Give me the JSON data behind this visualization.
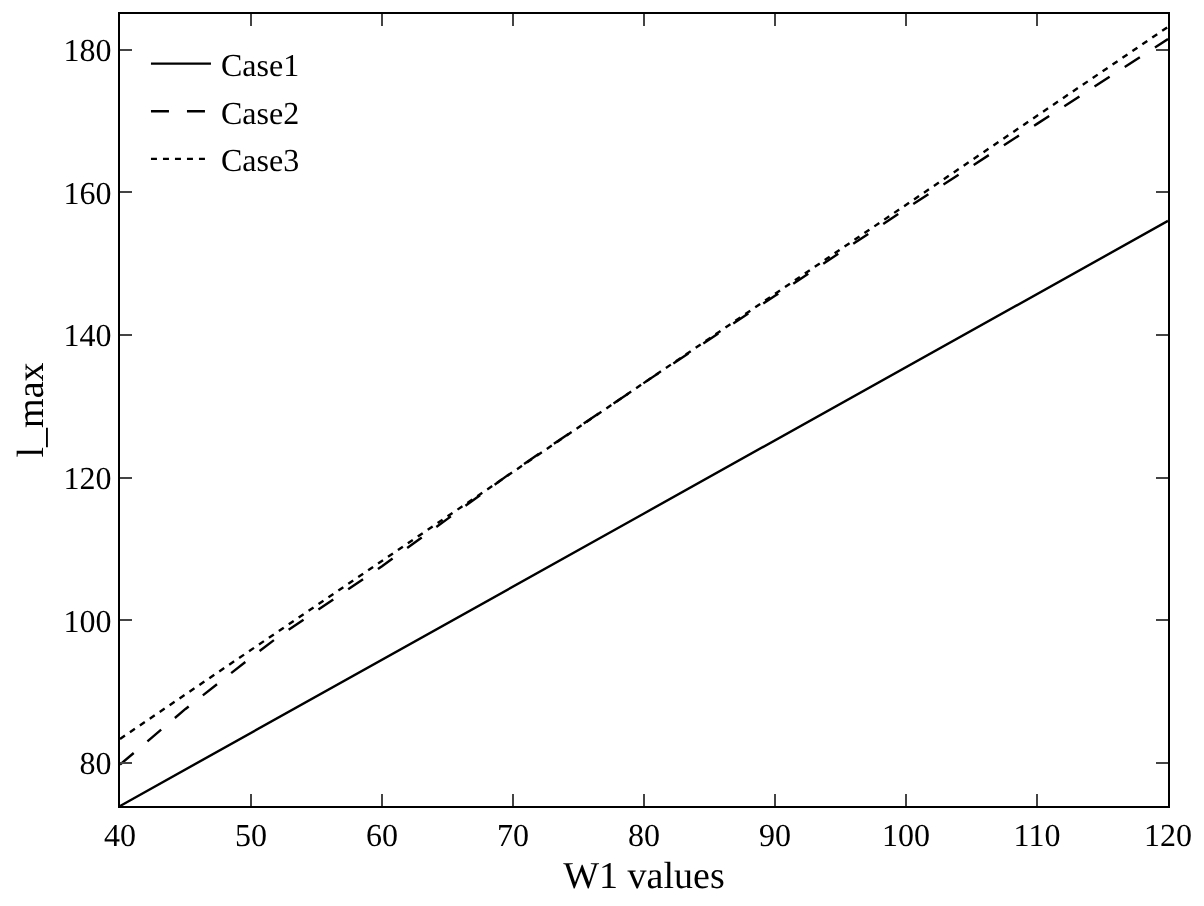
{
  "chart_data": {
    "type": "line",
    "xlabel": "W1 values",
    "ylabel": "l_max",
    "xlim": [
      40,
      120
    ],
    "xticks": [
      40,
      50,
      60,
      70,
      80,
      90,
      100,
      110,
      120
    ],
    "ylim": [
      74,
      185
    ],
    "yticks": [
      80,
      100,
      120,
      140,
      160,
      180
    ],
    "grid": false,
    "legend": "top left",
    "marker": "none",
    "series": [
      {
        "name": "Case1",
        "color": "#000000",
        "line_style": "solid",
        "x": [
          40,
          80,
          120
        ],
        "values": [
          74,
          115,
          156
        ]
      },
      {
        "name": "Case2",
        "color": "#000000",
        "line_style": "dashed",
        "x": [
          40,
          45,
          50,
          52,
          60,
          70,
          80,
          90,
          100,
          110,
          120
        ],
        "values": [
          79.8,
          87.6,
          94.8,
          97.6,
          107.6,
          120.9,
          133.3,
          145.5,
          157.7,
          169.6,
          181.5
        ]
      },
      {
        "name": "Case3",
        "color": "#000000",
        "line_style": "dotted",
        "x": [
          40,
          80,
          120
        ],
        "values": [
          83.4,
          133.3,
          183.2
        ]
      }
    ]
  }
}
